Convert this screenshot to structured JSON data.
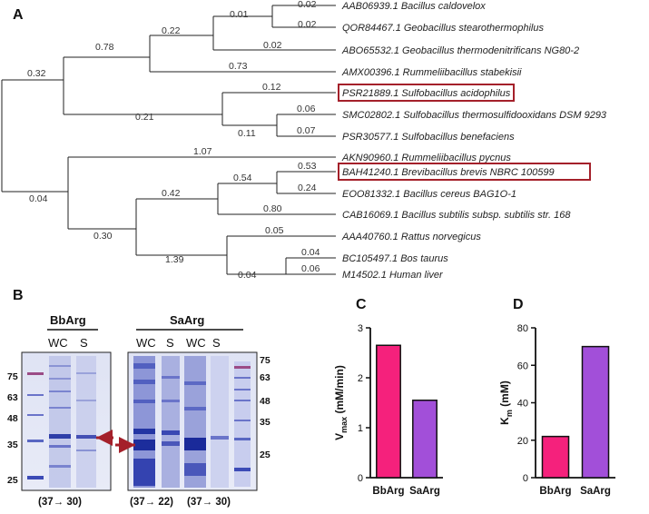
{
  "panel_a": {
    "letter": "A",
    "taxa": [
      "AAB06939.1 Bacillus caldovelox",
      "QOR84467.1 Geobacillus stearothermophilus",
      "ABO65532.1 Geobacillus thermodenitrificans NG80-2",
      "AMX00396.1 Rummeliibacillus stabekisii",
      "PSR21889.1 Sulfobacillus acidophilus",
      "SMC02802.1 Sulfobacillus thermosulfidooxidans DSM 9293",
      "PSR30577.1 Sulfobacillus benefaciens",
      "AKN90960.1 Rummeliibacillus pycnus",
      "BAH41240.1 Brevibacillus brevis NBRC 100599",
      "EOO81332.1 Bacillus cereus BAG1O-1",
      "CAB16069.1 Bacillus subtilis subsp. subtilis str. 168",
      "AAA40760.1 Rattus norvegicus",
      "BC105497.1 Bos taurus",
      "M14502.1 Human liver"
    ],
    "branch_lengths": [
      "0.02",
      "0.02",
      "0.01",
      "0.02",
      "0.22",
      "0.78",
      "0.73",
      "0.32",
      "0.12",
      "0.21",
      "0.06",
      "0.07",
      "0.11",
      "1.07",
      "0.04",
      "0.53",
      "0.54",
      "0.24",
      "0.42",
      "0.80",
      "0.30",
      "0.05",
      "0.04",
      "0.06",
      "1.39",
      "0.04"
    ],
    "highlight_color": "#a4202a"
  },
  "panel_b": {
    "letter": "B",
    "bbarg_title": "BbArg",
    "bbarg_lanes": [
      "WC",
      "S"
    ],
    "saarg_title": "SaArg",
    "saarg_lanes": [
      "WC",
      "S",
      "WC",
      "S"
    ],
    "markers": [
      "75",
      "63",
      "48",
      "35",
      "25"
    ],
    "conditions": [
      "(37→ 30)",
      "(37→ 22)",
      "(37→ 30)"
    ],
    "arrow_color": "#a4202a"
  },
  "chart_data": [
    {
      "type": "bar",
      "panel": "C",
      "categories": [
        "BbArg",
        "SaArg"
      ],
      "values": [
        2.65,
        1.55
      ],
      "ylabel": "Vmax (mM/min)",
      "ylim": [
        0,
        3
      ],
      "yticks": [
        "0",
        "1",
        "2",
        "3"
      ],
      "colors": [
        "#f5217c",
        "#a24fd9"
      ]
    },
    {
      "type": "bar",
      "panel": "D",
      "categories": [
        "BbArg",
        "SaArg"
      ],
      "values": [
        22,
        70
      ],
      "ylabel": "Km (mM)",
      "ylim": [
        0,
        80
      ],
      "yticks": [
        "0",
        "20",
        "40",
        "60",
        "80"
      ],
      "colors": [
        "#f5217c",
        "#a24fd9"
      ]
    }
  ]
}
